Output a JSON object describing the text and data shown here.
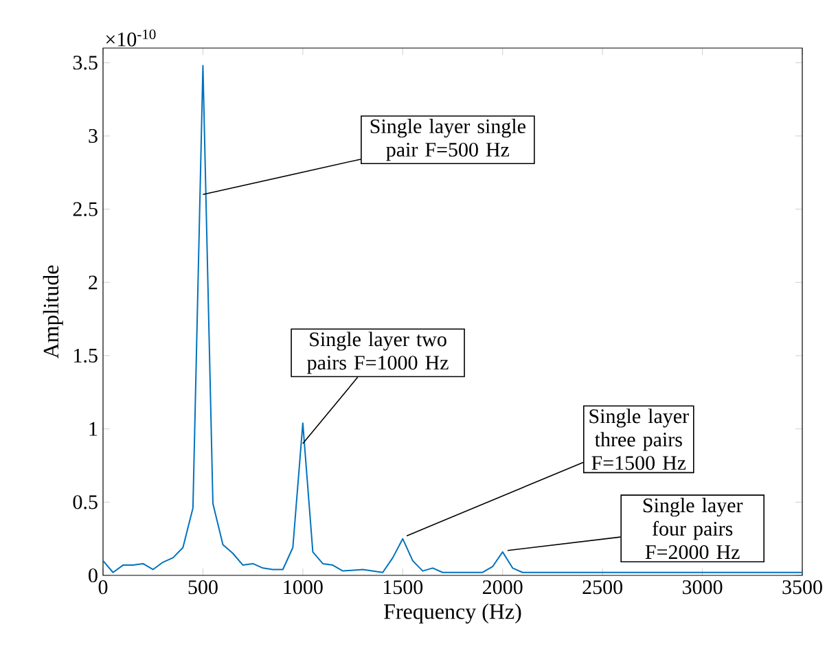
{
  "chart_data": {
    "type": "line",
    "xlabel": "Frequency (Hz)",
    "ylabel": "Amplitude",
    "xlim": [
      0,
      3500
    ],
    "ylim": [
      0,
      3.6
    ],
    "xticks": [
      0,
      500,
      1000,
      1500,
      2000,
      2500,
      3000,
      3500
    ],
    "yticks": [
      0,
      0.5,
      1,
      1.5,
      2,
      2.5,
      3,
      3.5
    ],
    "series": [
      {
        "color": "#0072bd",
        "x": [
          0,
          50,
          100,
          150,
          200,
          250,
          300,
          350,
          400,
          450,
          500,
          550,
          600,
          650,
          700,
          750,
          800,
          850,
          900,
          950,
          1000,
          1050,
          1100,
          1150,
          1200,
          1300,
          1400,
          1450,
          1500,
          1550,
          1600,
          1650,
          1700,
          1900,
          1950,
          2000,
          2050,
          2100,
          2500,
          3000,
          3500
        ],
        "values": [
          0.1,
          0.02,
          0.07,
          0.07,
          0.08,
          0.04,
          0.09,
          0.12,
          0.19,
          0.46,
          3.48,
          0.49,
          0.21,
          0.15,
          0.07,
          0.08,
          0.05,
          0.04,
          0.04,
          0.19,
          1.04,
          0.16,
          0.08,
          0.07,
          0.03,
          0.04,
          0.02,
          0.12,
          0.25,
          0.1,
          0.03,
          0.05,
          0.02,
          0.02,
          0.06,
          0.16,
          0.05,
          0.02,
          0.02,
          0.02,
          0.02
        ]
      }
    ],
    "annotations": [
      "×10$^{-10}$",
      {
        "text": "Single layer single pair F=500 Hz",
        "x": 500,
        "y": 2.6
      },
      {
        "text": "Single layer two pairs F=1000 Hz",
        "x": 1000,
        "y": 0.9
      },
      {
        "text": "Single layer three pairs F=1500 Hz",
        "x": 1520,
        "y": 0.27
      },
      {
        "text": "Single layer four pairs F=2000 Hz",
        "x": 2025,
        "y": 0.17
      }
    ]
  }
}
